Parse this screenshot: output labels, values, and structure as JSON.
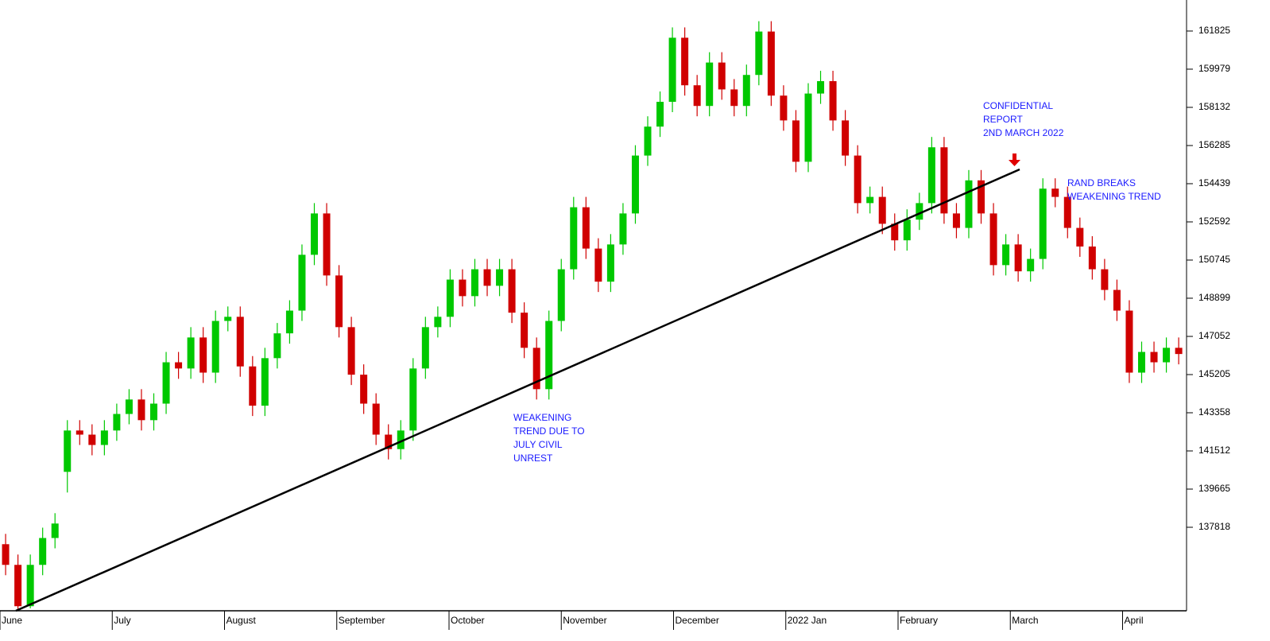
{
  "chart_data": {
    "type": "candlestick",
    "up_color": "#00c800",
    "down_color": "#d00000",
    "xlim": [
      0,
      10.57
    ],
    "xticks": [
      {
        "value": 0,
        "label": "June"
      },
      {
        "value": 1,
        "label": "July"
      },
      {
        "value": 2,
        "label": "August"
      },
      {
        "value": 3,
        "label": "September"
      },
      {
        "value": 4,
        "label": "October"
      },
      {
        "value": 5,
        "label": "November"
      },
      {
        "value": 6,
        "label": "December"
      },
      {
        "value": 7,
        "label": "2022 Jan"
      },
      {
        "value": 8,
        "label": "February"
      },
      {
        "value": 9,
        "label": "March"
      },
      {
        "value": 10,
        "label": "April"
      }
    ],
    "ylim": [
      133779,
      163325
    ],
    "yticks": [
      161825,
      159979,
      158132,
      156285,
      154439,
      152592,
      150745,
      148899,
      147052,
      145205,
      143358,
      141512,
      139665,
      137818
    ],
    "annotations": [
      {
        "lines": [
          "WEAKENING",
          "TREND DUE TO",
          "JULY CIVIL",
          "UNREST"
        ]
      },
      {
        "lines": [
          "CONFIDENTIAL",
          "REPORT",
          "2ND MARCH 2022"
        ]
      },
      {
        "lines": [
          "RAND BREAKS",
          "WEAKENING TREND"
        ]
      }
    ],
    "x": [
      0.05,
      0.16,
      0.27,
      0.38,
      0.49,
      0.6,
      0.71,
      0.82,
      0.93,
      1.04,
      1.15,
      1.26,
      1.37,
      1.48,
      1.59,
      1.7,
      1.81,
      1.92,
      2.03,
      2.14,
      2.25,
      2.36,
      2.47,
      2.58,
      2.69,
      2.8,
      2.91,
      3.02,
      3.13,
      3.24,
      3.35,
      3.46,
      3.57,
      3.68,
      3.79,
      3.9,
      4.01,
      4.12,
      4.23,
      4.34,
      4.45,
      4.56,
      4.67,
      4.78,
      4.89,
      5,
      5.11,
      5.22,
      5.33,
      5.44,
      5.55,
      5.66,
      5.77,
      5.88,
      5.99,
      6.1,
      6.21,
      6.32,
      6.43,
      6.54,
      6.65,
      6.76,
      6.87,
      6.98,
      7.09,
      7.2,
      7.31,
      7.42,
      7.53,
      7.64,
      7.75,
      7.86,
      7.97,
      8.08,
      8.19,
      8.3,
      8.41,
      8.52,
      8.63,
      8.74,
      8.85,
      8.96,
      9.07,
      9.18,
      9.29,
      9.4,
      9.51,
      9.62,
      9.73,
      9.84,
      9.95,
      10.06,
      10.17,
      10.28,
      10.39,
      10.5
    ],
    "open": [
      137000,
      136000,
      134000,
      136000,
      137300,
      140500,
      142500,
      142300,
      141800,
      142500,
      143300,
      144000,
      143000,
      143800,
      145800,
      145500,
      147000,
      145300,
      147800,
      148000,
      145600,
      143700,
      146000,
      147200,
      148300,
      151000,
      153000,
      150000,
      147500,
      145200,
      143800,
      142300,
      141600,
      142500,
      145500,
      147500,
      148000,
      149800,
      149000,
      150300,
      149500,
      150300,
      148200,
      146500,
      144500,
      147800,
      150300,
      153300,
      151300,
      149700,
      151500,
      153000,
      155800,
      157200,
      158400,
      161500,
      159200,
      158200,
      160300,
      159000,
      158200,
      159700,
      161800,
      158700,
      157500,
      155500,
      158800,
      159400,
      157500,
      155800,
      153500,
      153800,
      152500,
      151700,
      152700,
      153500,
      156200,
      153000,
      152300,
      154600,
      153000,
      150500,
      151500,
      150200,
      150800,
      154200,
      153800,
      152300,
      151400,
      150300,
      149300,
      148300,
      145300,
      146300,
      145800,
      146500
    ],
    "high": [
      137500,
      136500,
      136500,
      137800,
      138500,
      143000,
      143000,
      142800,
      143000,
      143800,
      144500,
      144500,
      144300,
      146300,
      146300,
      147500,
      147500,
      148300,
      148500,
      148500,
      146100,
      146500,
      147700,
      148800,
      151500,
      153500,
      153500,
      150500,
      148000,
      145700,
      144300,
      142800,
      143000,
      146000,
      148000,
      148500,
      150300,
      150300,
      150800,
      150800,
      150800,
      150800,
      148700,
      147000,
      148300,
      150800,
      153800,
      153800,
      151800,
      152000,
      153500,
      156300,
      157700,
      158900,
      162000,
      162000,
      159700,
      160800,
      160800,
      159500,
      160200,
      162300,
      162300,
      159200,
      158000,
      159300,
      159900,
      159900,
      158000,
      156300,
      154300,
      154300,
      153000,
      153200,
      154000,
      156700,
      156700,
      153500,
      155100,
      155100,
      153500,
      152000,
      152000,
      151300,
      154700,
      154700,
      154300,
      152800,
      151900,
      150800,
      149800,
      148800,
      146800,
      146800,
      147000,
      147000
    ],
    "low": [
      135500,
      133800,
      133900,
      135500,
      136800,
      139500,
      141800,
      141300,
      141300,
      142000,
      142800,
      142500,
      142500,
      143300,
      145000,
      145000,
      144800,
      144800,
      147300,
      145100,
      143200,
      143200,
      145500,
      146700,
      147800,
      150500,
      149500,
      147000,
      144700,
      143300,
      141800,
      141100,
      141100,
      142000,
      145000,
      147000,
      147500,
      148500,
      148500,
      149000,
      149000,
      147700,
      146000,
      144000,
      144000,
      147300,
      149800,
      150800,
      149200,
      149200,
      151000,
      152500,
      155300,
      156700,
      157900,
      158700,
      157700,
      157700,
      158500,
      157700,
      157700,
      159200,
      158200,
      157000,
      155000,
      155000,
      158300,
      157000,
      155300,
      153000,
      153000,
      152000,
      151200,
      151200,
      152200,
      153000,
      152500,
      151800,
      151800,
      152500,
      150000,
      150000,
      149700,
      149700,
      150300,
      153300,
      151800,
      150900,
      149800,
      148800,
      147800,
      144800,
      144800,
      145300,
      145300,
      145700
    ],
    "close": [
      136000,
      134000,
      136000,
      137300,
      138000,
      142500,
      142300,
      141800,
      142500,
      143300,
      144000,
      143000,
      143800,
      145800,
      145500,
      147000,
      145300,
      147800,
      148000,
      145600,
      143700,
      146000,
      147200,
      148300,
      151000,
      153000,
      150000,
      147500,
      145200,
      143800,
      142300,
      141600,
      142500,
      145500,
      147500,
      148000,
      149800,
      149000,
      150300,
      149500,
      150300,
      148200,
      146500,
      144500,
      147800,
      150300,
      153300,
      151300,
      149700,
      151500,
      153000,
      155800,
      157200,
      158400,
      161500,
      159200,
      158200,
      160300,
      159000,
      158200,
      159700,
      161800,
      158700,
      157500,
      155500,
      158800,
      159400,
      157500,
      155800,
      153500,
      153800,
      152500,
      151700,
      152700,
      153500,
      156200,
      153000,
      152300,
      154600,
      153000,
      150500,
      151500,
      150200,
      150800,
      154200,
      153800,
      152300,
      151400,
      150300,
      149300,
      148300,
      145300,
      146300,
      145800,
      146500,
      146200
    ]
  }
}
